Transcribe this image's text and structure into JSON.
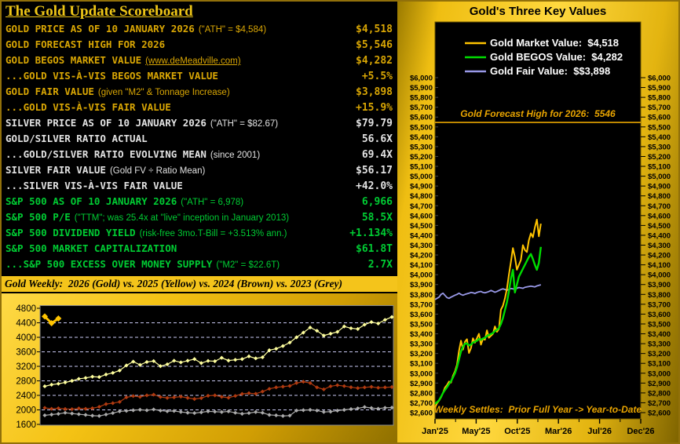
{
  "scoreboard": {
    "title": "The Gold Update Scoreboard",
    "rows": [
      {
        "label": "GOLD PRICE AS OF 10 JANUARY 2026",
        "note": "(\"ATH\" = $4,584)",
        "value": "$4,518",
        "group": "gold",
        "link": false
      },
      {
        "label": "GOLD FORECAST HIGH FOR 2026",
        "note": "",
        "value": "$5,546",
        "group": "gold",
        "link": false
      },
      {
        "label": "GOLD BEGOS MARKET VALUE",
        "note": "(www.deMeadville.com)",
        "value": "$4,282",
        "group": "gold",
        "link": true
      },
      {
        "label": "...GOLD VIS-À-VIS BEGOS MARKET VALUE",
        "note": "",
        "value": "+5.5%",
        "group": "gold",
        "link": false
      },
      {
        "label": "GOLD FAIR VALUE",
        "note": "(given \"M2\" & Tonnage Increase)",
        "value": "$3,898",
        "group": "gold",
        "link": false
      },
      {
        "label": "...GOLD VIS-À-VIS FAIR VALUE",
        "note": "",
        "value": "+15.9%",
        "group": "gold",
        "link": false
      },
      {
        "label": "SILVER PRICE AS OF 10 JANUARY 2026",
        "note": "(\"ATH\" = $82.67)",
        "value": "$79.79",
        "group": "silver",
        "link": false
      },
      {
        "label": "GOLD/SILVER RATIO ACTUAL",
        "note": "",
        "value": "56.6X",
        "group": "silver",
        "link": false
      },
      {
        "label": "...GOLD/SILVER RATIO EVOLVING MEAN",
        "note": "(since 2001)",
        "value": "69.4X",
        "group": "silver",
        "link": false
      },
      {
        "label": "SILVER FAIR VALUE",
        "note": "(Gold FV ÷ Ratio Mean)",
        "value": "$56.17",
        "group": "silver",
        "link": false
      },
      {
        "label": "...SILVER VIS-À-VIS FAIR VALUE",
        "note": "",
        "value": "+42.0%",
        "group": "silver",
        "link": false
      },
      {
        "label": "S&P 500 AS OF 10 JANUARY 2026",
        "note": "(\"ATH\" = 6,978)",
        "value": "6,966",
        "group": "green",
        "link": false
      },
      {
        "label": "S&P 500 P/E",
        "note": "(\"TTM\"; was 25.4x at \"live\" inception in January 2013)",
        "value": "58.5X",
        "group": "green",
        "link": false
      },
      {
        "label": "S&P 500 DIVIDEND YIELD",
        "note": "(risk-free 3mo.T-Bill = +3.513% ann.)",
        "value": "+1.134%",
        "group": "green",
        "link": false
      },
      {
        "label": "S&P 500 MARKET CAPITALIZATION",
        "note": "",
        "value": "$61.8T",
        "group": "green",
        "link": false
      },
      {
        "label": "...S&P 500 EXCESS OVER MONEY SUPPLY",
        "note": "(\"M2\" = $22.6T)",
        "value": "2.7X",
        "group": "green",
        "link": false
      }
    ]
  },
  "colors": {
    "gold_text": "#D9A604",
    "silver_text": "#E2E2E2",
    "green_text": "#00CC33",
    "panel_gold": "#F4C214",
    "plot_bg": "#000000",
    "grid_dashed": "#C9C9F2",
    "annotation_gold": "#E8A400",
    "legend_text": "#FFFFFF"
  },
  "chart_data": [
    {
      "type": "line",
      "title": "Gold Weekly:  2026 (Gold) vs. 2025 (Yellow) vs. 2024 (Brown) vs. 2023 (Grey)",
      "ylabel": "",
      "xlabel": "",
      "ylim": [
        1600,
        4800
      ],
      "yticks": [
        4800,
        4400,
        4000,
        3600,
        3200,
        2800,
        2400,
        2000,
        1600
      ],
      "grid": "horizontal dashed at each 400 step (2000-4400)",
      "x_units": "52 weekly settles per year, no x labels",
      "marker": "diamond",
      "series": [
        {
          "name": "2023 (Grey)",
          "color": "#ABABAB",
          "width": 1.2,
          "values": [
            1850,
            1870,
            1890,
            1920,
            1900,
            1880,
            1862,
            1840,
            1832,
            1872,
            1912,
            1958,
            1972,
            1990,
            2002,
            1988,
            2012,
            1980,
            1962,
            1970,
            1942,
            1922,
            1912,
            1932,
            1960,
            1950,
            1940,
            1958,
            1920,
            1892,
            1912,
            1940,
            1920,
            1862,
            1850,
            1832,
            1842,
            1982,
            1992,
            2000,
            1982,
            1942,
            1952,
            1980,
            2000,
            2022,
            2042,
            2078,
            2052,
            2032,
            2058,
            2062
          ]
        },
        {
          "name": "2024 (Brown)",
          "color": "#B03A10",
          "width": 1.2,
          "values": [
            2055,
            2030,
            2045,
            2025,
            2020,
            2040,
            2030,
            2045,
            2085,
            2160,
            2185,
            2220,
            2345,
            2380,
            2360,
            2400,
            2420,
            2355,
            2330,
            2345,
            2365,
            2330,
            2300,
            2325,
            2390,
            2400,
            2360,
            2335,
            2385,
            2440,
            2460,
            2445,
            2505,
            2580,
            2620,
            2640,
            2660,
            2740,
            2775,
            2740,
            2620,
            2565,
            2650,
            2680,
            2655,
            2625,
            2600,
            2620,
            2635,
            2610,
            2620,
            2630
          ]
        },
        {
          "name": "2025 (Yellow)",
          "color": "#FFFF9E",
          "width": 1.2,
          "values": [
            2650,
            2695,
            2720,
            2755,
            2800,
            2855,
            2880,
            2915,
            2905,
            2975,
            3020,
            3085,
            3225,
            3330,
            3240,
            3320,
            3345,
            3205,
            3255,
            3355,
            3310,
            3355,
            3400,
            3290,
            3350,
            3340,
            3435,
            3360,
            3380,
            3400,
            3475,
            3420,
            3450,
            3645,
            3685,
            3760,
            3855,
            4000,
            4130,
            4270,
            4180,
            4050,
            4100,
            4150,
            4300,
            4250,
            4230,
            4350,
            4420,
            4380,
            4480,
            4560
          ]
        },
        {
          "name": "2026 (Gold)",
          "color": "#FFC400",
          "width": 3,
          "values": [
            4575,
            4390,
            4518
          ]
        }
      ]
    },
    {
      "type": "line",
      "title": "Gold's Three Key Values",
      "ylim": [
        2600,
        6000
      ],
      "ytick_step": 100,
      "ytick_format": "$#,###  (both sides)",
      "xlabels": [
        "Jan'25",
        "May'25",
        "Oct'25",
        "Mar'26",
        "Jul'26",
        "Dec'26"
      ],
      "x_span_weeks": 104,
      "legend": [
        {
          "label": "Gold Market Value:  $4,518",
          "color": "#FFC400"
        },
        {
          "label": "Gold BEGOS Value:  $4,282",
          "color": "#00DD00"
        },
        {
          "label": "Gold Fair Value:  $$3,898",
          "color": "#9999E8"
        }
      ],
      "forecast_line": {
        "label": "Gold Forecast High for 2026:  5546",
        "value": 5546,
        "color": "#E8A400"
      },
      "annotation": "Weekly Settles:  Prior Full Year -> Year-to-Date",
      "series": [
        {
          "name": "Gold Fair Value",
          "color": "#9999E8",
          "width": 1.8,
          "values": [
            3748,
            3760,
            3772,
            3800,
            3812,
            3790,
            3768,
            3760,
            3772,
            3782,
            3792,
            3800,
            3812,
            3800,
            3792,
            3800,
            3806,
            3812,
            3820,
            3816,
            3810,
            3820,
            3826,
            3830,
            3820,
            3816,
            3822,
            3830,
            3840,
            3832,
            3822,
            3830,
            3840,
            3850,
            3856,
            3850,
            3842,
            3850,
            3860,
            3856,
            3852,
            3862,
            3870,
            3866,
            3862,
            3872,
            3876,
            3880,
            3884,
            3880,
            3876,
            3886,
            3892,
            3898
          ]
        },
        {
          "name": "Gold Market Value",
          "color": "#FFC400",
          "width": 2,
          "values": [
            2650,
            2695,
            2720,
            2755,
            2800,
            2855,
            2880,
            2915,
            2905,
            2975,
            3020,
            3085,
            3225,
            3330,
            3240,
            3320,
            3345,
            3205,
            3255,
            3355,
            3310,
            3355,
            3400,
            3290,
            3350,
            3340,
            3435,
            3360,
            3380,
            3400,
            3475,
            3420,
            3450,
            3645,
            3685,
            3760,
            3855,
            4000,
            4130,
            4270,
            4180,
            4050,
            4100,
            4150,
            4300,
            4250,
            4230,
            4350,
            4420,
            4380,
            4480,
            4560,
            4390,
            4518
          ]
        },
        {
          "name": "Gold BEGOS Value",
          "color": "#00DD00",
          "width": 2.4,
          "values": [
            2690,
            2705,
            2725,
            2760,
            2800,
            2830,
            2858,
            2890,
            2918,
            2958,
            3000,
            3060,
            3140,
            3220,
            3268,
            3300,
            3302,
            3282,
            3290,
            3312,
            3320,
            3330,
            3348,
            3340,
            3352,
            3360,
            3378,
            3388,
            3398,
            3408,
            3428,
            3440,
            3458,
            3500,
            3560,
            3640,
            3720,
            3830,
            3960,
            4050,
            3820,
            3900,
            3980,
            4020,
            4060,
            4100,
            4140,
            4180,
            4210,
            4160,
            4100,
            4050,
            4120,
            4282
          ]
        }
      ]
    }
  ]
}
